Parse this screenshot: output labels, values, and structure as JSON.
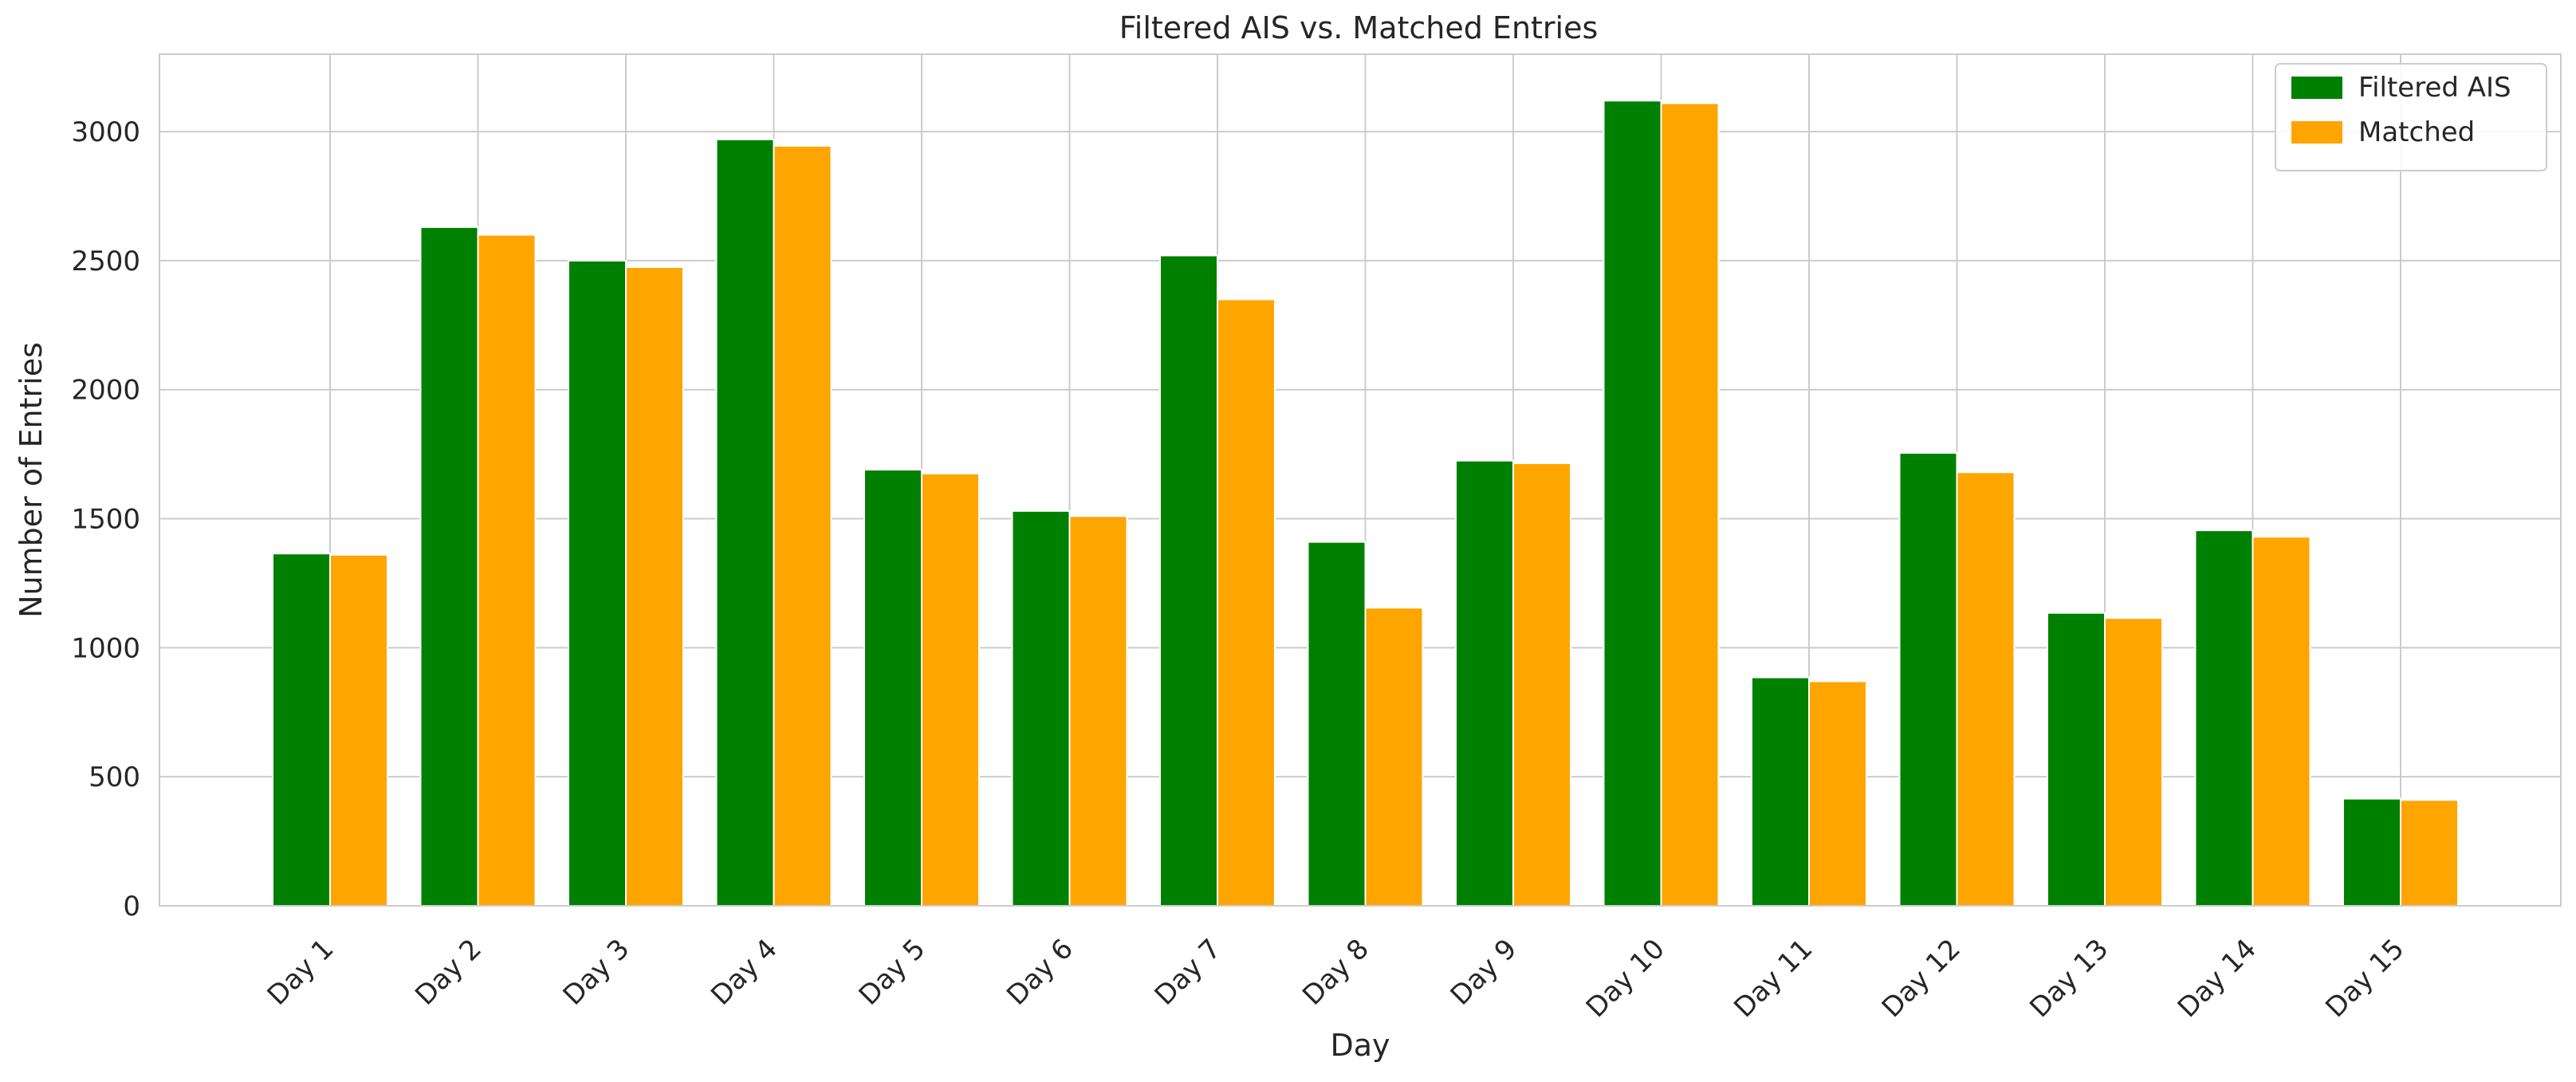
{
  "chart_data": {
    "type": "bar",
    "title": "Filtered AIS vs. Matched Entries",
    "xlabel": "Day",
    "ylabel": "Number of Entries",
    "categories": [
      "Day 1",
      "Day 2",
      "Day 3",
      "Day 4",
      "Day 5",
      "Day 6",
      "Day 7",
      "Day 8",
      "Day 9",
      "Day 10",
      "Day 11",
      "Day 12",
      "Day 13",
      "Day 14",
      "Day 15"
    ],
    "series": [
      {
        "name": "Filtered AIS",
        "color": "#008000",
        "values": [
          1365,
          2630,
          2500,
          2970,
          1690,
          1530,
          2520,
          1410,
          1725,
          3120,
          885,
          1755,
          1135,
          1455,
          415
        ]
      },
      {
        "name": "Matched",
        "color": "#FFA500",
        "values": [
          1360,
          2600,
          2475,
          2945,
          1675,
          1510,
          2350,
          1155,
          1715,
          3110,
          870,
          1680,
          1115,
          1430,
          410
        ]
      }
    ],
    "ylim": [
      0,
      3300
    ],
    "yticks": [
      0,
      500,
      1000,
      1500,
      2000,
      2500,
      3000
    ],
    "grid": true,
    "legend_position": "top-right",
    "xtick_rotation": 45
  }
}
